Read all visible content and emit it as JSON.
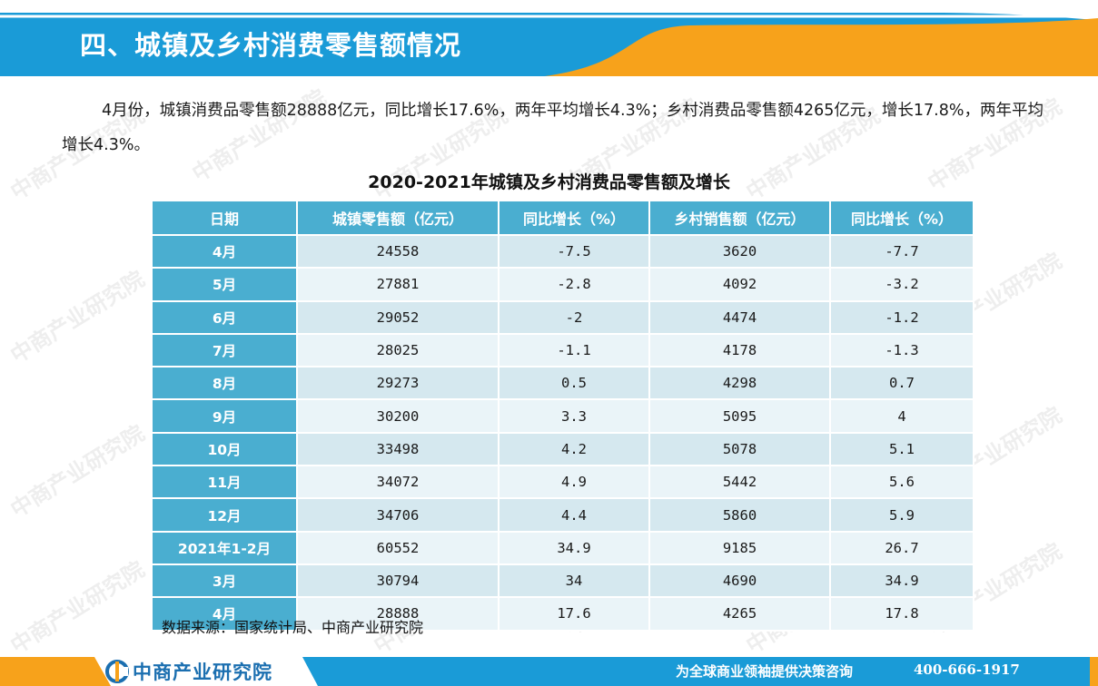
{
  "header": {
    "title": "四、城镇及乡村消费零售额情况",
    "color_blue": "#1a9bd7",
    "color_orange": "#f7a21b"
  },
  "intro": {
    "text": "4月份，城镇消费品零售额28888亿元，同比增长17.6%，两年平均增长4.3%；乡村消费品零售额4265亿元，增长17.8%，两年平均增长4.3%。"
  },
  "table": {
    "title": "2020-2021年城镇及乡村消费品零售额及增长",
    "headers": [
      "日期",
      "城镇零售额（亿元）",
      "同比增长（%）",
      "乡村销售额（亿元）",
      "同比增长（%）"
    ],
    "rows": [
      [
        "4月",
        "24558",
        "-7.5",
        "3620",
        "-7.7"
      ],
      [
        "5月",
        "27881",
        "-2.8",
        "4092",
        "-3.2"
      ],
      [
        "6月",
        "29052",
        "-2",
        "4474",
        "-1.2"
      ],
      [
        "7月",
        "28025",
        "-1.1",
        "4178",
        "-1.3"
      ],
      [
        "8月",
        "29273",
        "0.5",
        "4298",
        "0.7"
      ],
      [
        "9月",
        "30200",
        "3.3",
        "5095",
        "4"
      ],
      [
        "10月",
        "33498",
        "4.2",
        "5078",
        "5.1"
      ],
      [
        "11月",
        "34072",
        "4.9",
        "5442",
        "5.6"
      ],
      [
        "12月",
        "34706",
        "4.4",
        "5860",
        "5.9"
      ],
      [
        "2021年1-2月",
        "60552",
        "34.9",
        "9185",
        "26.7"
      ],
      [
        "3月",
        "30794",
        "34",
        "4690",
        "34.9"
      ],
      [
        "4月",
        "28888",
        "17.6",
        "4265",
        "17.8"
      ]
    ],
    "header_color": "#4aaed0"
  },
  "source": "数据来源：国家统计局、中商产业研究院",
  "footer": {
    "logo_text": "中商产业研究院",
    "slogan": "为全球商业领袖提供决策咨询",
    "phone": "400-666-1917",
    "logo_icon": "company-logo-icon"
  },
  "watermark": {
    "text": "中商产业研究院"
  }
}
